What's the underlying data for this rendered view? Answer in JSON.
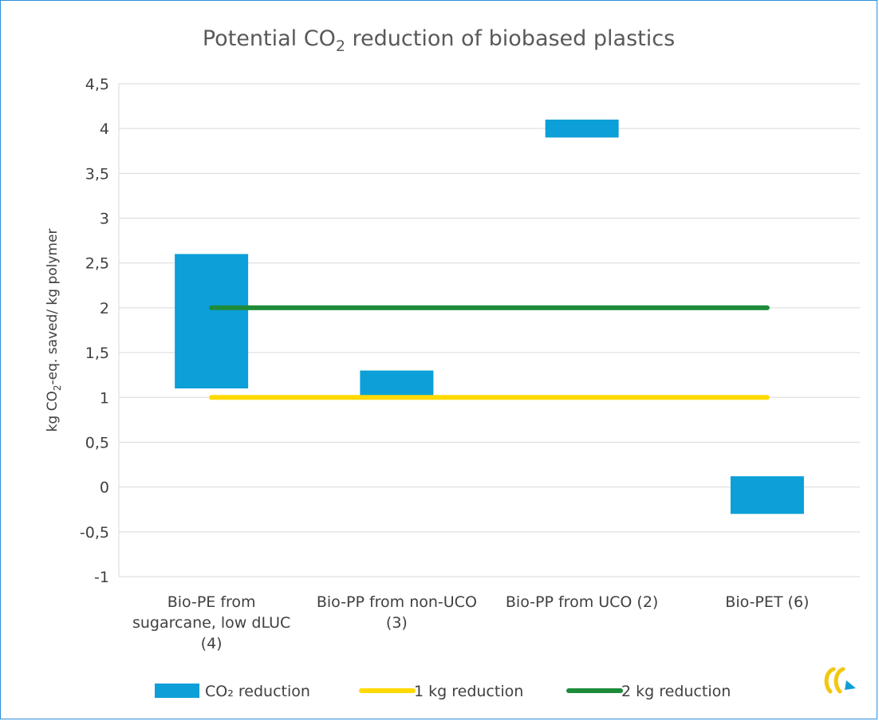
{
  "chart_data": {
    "type": "bar",
    "title": "Potential CO2 reduction of biobased plastics",
    "title_parts": {
      "pre": "Potential CO",
      "sub": "2",
      "post": " reduction of biobased plastics"
    },
    "ylabel": "kg CO2-eq. saved/ kg polymer",
    "ylabel_parts": {
      "pre": "kg CO",
      "sub": "2",
      "post": "-eq. saved/ kg polymer"
    },
    "ylim": [
      -1,
      4.5
    ],
    "y_ticks": [
      -1,
      -0.5,
      0,
      0.5,
      1,
      1.5,
      2,
      2.5,
      3,
      3.5,
      4,
      4.5
    ],
    "y_tick_labels": [
      "-1",
      "-0,5",
      "0",
      "0,5",
      "1",
      "1,5",
      "2",
      "2,5",
      "3",
      "3,5",
      "4",
      "4,5"
    ],
    "grid": true,
    "categories": [
      [
        "Bio-PE from",
        "sugarcane, low dLUC",
        "(4)"
      ],
      [
        "Bio-PP from non-UCO",
        "(3)"
      ],
      [
        "Bio-PP from UCO (2)"
      ],
      [
        "Bio-PET (6)"
      ]
    ],
    "series": [
      {
        "name": "CO₂ reduction",
        "type": "floating-bar",
        "low": [
          1.1,
          1.02,
          3.9,
          -0.3
        ],
        "high": [
          2.6,
          1.3,
          4.1,
          0.12
        ],
        "color": "#0c9fd8"
      },
      {
        "name": "1 kg reduction",
        "type": "line",
        "values": [
          1,
          1,
          1,
          1
        ],
        "color": "#ffd900"
      },
      {
        "name": "2 kg reduction",
        "type": "line",
        "values": [
          2,
          2,
          2,
          2
        ],
        "color": "#1e8b3b"
      }
    ],
    "legend_position": "bottom"
  },
  "logo": {
    "name": "ce-delft-logo",
    "colors": [
      "#f2c80f",
      "#f2c80f",
      "#0c9fd8"
    ]
  }
}
